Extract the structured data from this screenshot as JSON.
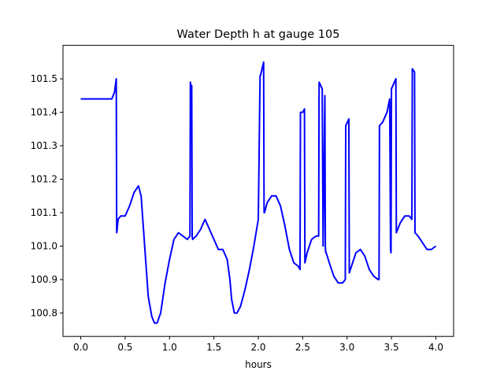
{
  "chart_data": {
    "type": "line",
    "title": "Water Depth h at gauge 105",
    "xlabel": "hours",
    "ylabel": "",
    "xlim": [
      -0.2,
      4.2
    ],
    "ylim": [
      100.73,
      101.6
    ],
    "xticks": [
      0.0,
      0.5,
      1.0,
      1.5,
      2.0,
      2.5,
      3.0,
      3.5,
      4.0
    ],
    "xtick_labels": [
      "0.0",
      "0.5",
      "1.0",
      "1.5",
      "2.0",
      "2.5",
      "3.0",
      "3.5",
      "4.0"
    ],
    "yticks": [
      100.8,
      100.9,
      101.0,
      101.1,
      101.2,
      101.3,
      101.4,
      101.5
    ],
    "ytick_labels": [
      "100.8",
      "100.9",
      "101.0",
      "101.1",
      "101.2",
      "101.3",
      "101.4",
      "101.5"
    ],
    "grid": false,
    "series": [
      {
        "color": "#0000ff",
        "x": [
          0.0,
          0.1,
          0.2,
          0.25,
          0.3,
          0.35,
          0.38,
          0.4,
          0.405,
          0.41,
          0.42,
          0.45,
          0.5,
          0.55,
          0.6,
          0.65,
          0.68,
          0.72,
          0.76,
          0.8,
          0.83,
          0.86,
          0.9,
          0.95,
          1.0,
          1.05,
          1.1,
          1.15,
          1.2,
          1.23,
          1.235,
          1.24,
          1.25,
          1.255,
          1.26,
          1.3,
          1.35,
          1.4,
          1.45,
          1.5,
          1.55,
          1.6,
          1.65,
          1.68,
          1.7,
          1.73,
          1.76,
          1.8,
          1.85,
          1.9,
          1.95,
          2.0,
          2.02,
          2.025,
          2.06,
          2.065,
          2.07,
          2.1,
          2.15,
          2.2,
          2.25,
          2.3,
          2.35,
          2.4,
          2.45,
          2.47,
          2.475,
          2.5,
          2.52,
          2.525,
          2.55,
          2.6,
          2.65,
          2.68,
          2.685,
          2.72,
          2.73,
          2.75,
          2.755,
          2.76,
          2.765,
          2.8,
          2.85,
          2.9,
          2.95,
          2.98,
          2.985,
          3.02,
          3.025,
          3.05,
          3.1,
          3.15,
          3.2,
          3.25,
          3.3,
          3.35,
          3.36,
          3.365,
          3.4,
          3.45,
          3.48,
          3.49,
          3.495,
          3.5,
          3.55,
          3.555,
          3.6,
          3.65,
          3.7,
          3.73,
          3.735,
          3.76,
          3.765,
          3.8,
          3.85,
          3.9,
          3.95,
          4.0
        ],
        "y": [
          101.44,
          101.44,
          101.44,
          101.44,
          101.44,
          101.44,
          101.46,
          101.5,
          101.04,
          101.05,
          101.08,
          101.09,
          101.09,
          101.12,
          101.16,
          101.18,
          101.15,
          101.0,
          100.85,
          100.79,
          100.77,
          100.77,
          100.8,
          100.89,
          100.96,
          101.02,
          101.04,
          101.03,
          101.02,
          101.03,
          101.49,
          101.48,
          101.48,
          101.03,
          101.02,
          101.03,
          101.05,
          101.08,
          101.05,
          101.02,
          100.99,
          100.99,
          100.96,
          100.9,
          100.84,
          100.8,
          100.8,
          100.82,
          100.87,
          100.93,
          101.0,
          101.08,
          101.51,
          101.51,
          101.55,
          101.1,
          101.1,
          101.13,
          101.15,
          101.15,
          101.12,
          101.06,
          100.99,
          100.95,
          100.94,
          100.93,
          101.4,
          101.4,
          101.41,
          100.95,
          100.98,
          101.02,
          101.03,
          101.03,
          101.49,
          101.47,
          101.0,
          101.45,
          101.0,
          100.98,
          100.98,
          100.95,
          100.91,
          100.89,
          100.89,
          100.9,
          101.36,
          101.38,
          100.92,
          100.94,
          100.98,
          100.99,
          100.97,
          100.93,
          100.91,
          100.9,
          100.9,
          101.36,
          101.37,
          101.4,
          101.44,
          100.99,
          100.98,
          101.47,
          101.5,
          101.04,
          101.07,
          101.09,
          101.09,
          101.08,
          101.53,
          101.52,
          101.04,
          101.03,
          101.01,
          100.99,
          100.99,
          101.0
        ]
      }
    ]
  }
}
